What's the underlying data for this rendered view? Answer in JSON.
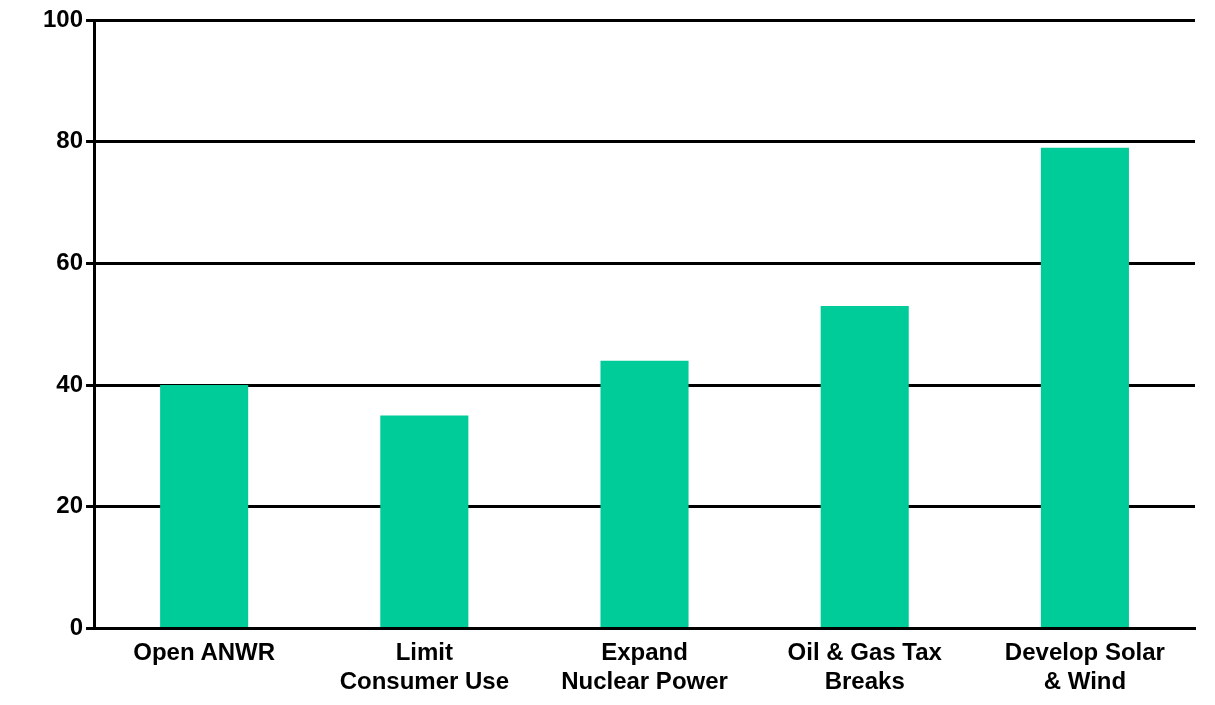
{
  "chart_data": {
    "type": "bar",
    "categories": [
      "Open ANWR",
      "Limit Consumer Use",
      "Expand Nuclear Power",
      "Oil & Gas Tax Breaks",
      "Develop Solar & Wind"
    ],
    "values": [
      40,
      35,
      44,
      53,
      79
    ],
    "color": "#00cc99",
    "ylim": [
      0,
      100
    ],
    "yticks": [
      0,
      20,
      40,
      60,
      80,
      100
    ],
    "grid": "y"
  }
}
